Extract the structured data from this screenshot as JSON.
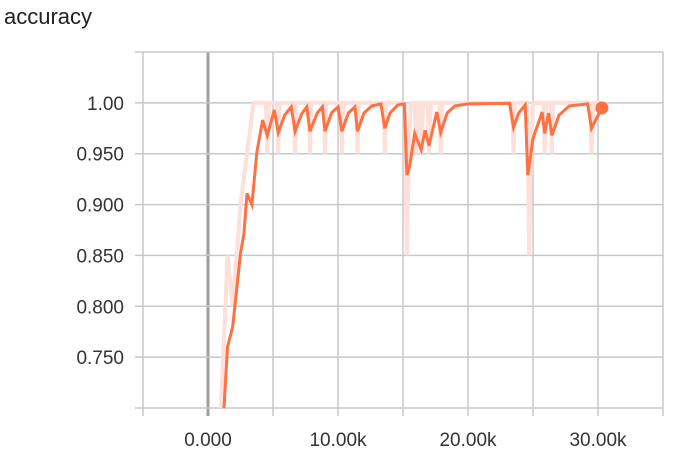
{
  "chart_data": {
    "type": "line",
    "title": "accuracy",
    "xlim": [
      -5000,
      35000
    ],
    "ylim": [
      0.7,
      1.05
    ],
    "grid": true,
    "x_ticks": [
      {
        "value": 0,
        "label": "0.000"
      },
      {
        "value": 10000,
        "label": "10.00k"
      },
      {
        "value": 20000,
        "label": "20.00k"
      },
      {
        "value": 30000,
        "label": "30.00k"
      }
    ],
    "y_ticks": [
      {
        "value": 1.0,
        "label": "1.00"
      },
      {
        "value": 0.95,
        "label": "0.950"
      },
      {
        "value": 0.9,
        "label": "0.900"
      },
      {
        "value": 0.85,
        "label": "0.850"
      },
      {
        "value": 0.8,
        "label": "0.800"
      },
      {
        "value": 0.75,
        "label": "0.750"
      }
    ],
    "x_grid_step": 5000,
    "y_grid_step": 0.05,
    "colors": {
      "smoothed": "#ff7043",
      "raw": "#fde0da",
      "grid": "#c8c8c8",
      "zero_axis": "#9e9e9e"
    },
    "series": [
      {
        "role": "raw",
        "points": [
          [
            1000,
            0.7
          ],
          [
            1500,
            0.85
          ],
          [
            1900,
            0.8
          ],
          [
            2500,
            0.9
          ],
          [
            3000,
            0.95
          ],
          [
            3500,
            1.0
          ],
          [
            4450,
            1.0
          ],
          [
            4560,
            0.95
          ],
          [
            4700,
            1.0
          ],
          [
            5300,
            1.0
          ],
          [
            5400,
            0.95
          ],
          [
            5500,
            1.0
          ],
          [
            6600,
            1.0
          ],
          [
            6700,
            0.95
          ],
          [
            6800,
            1.0
          ],
          [
            7750,
            1.0
          ],
          [
            7850,
            0.95
          ],
          [
            7950,
            1.0
          ],
          [
            8900,
            1.0
          ],
          [
            9000,
            0.95
          ],
          [
            9100,
            1.0
          ],
          [
            10200,
            1.0
          ],
          [
            10300,
            0.95
          ],
          [
            10400,
            1.0
          ],
          [
            11400,
            1.0
          ],
          [
            11500,
            0.95
          ],
          [
            11600,
            1.0
          ],
          [
            13500,
            1.0
          ],
          [
            13600,
            0.95
          ],
          [
            13700,
            1.0
          ],
          [
            15150,
            1.0
          ],
          [
            15300,
            0.85
          ],
          [
            15450,
            0.95
          ],
          [
            15600,
            1.0
          ],
          [
            15900,
            1.0
          ],
          [
            16000,
            0.95
          ],
          [
            16150,
            1.0
          ],
          [
            16300,
            1.0
          ],
          [
            16400,
            0.95
          ],
          [
            16550,
            1.0
          ],
          [
            16900,
            1.0
          ],
          [
            17000,
            0.95
          ],
          [
            17150,
            1.0
          ],
          [
            17800,
            1.0
          ],
          [
            17900,
            0.95
          ],
          [
            18000,
            1.0
          ],
          [
            23400,
            1.0
          ],
          [
            23500,
            0.95
          ],
          [
            23600,
            1.0
          ],
          [
            24550,
            1.0
          ],
          [
            24700,
            0.85
          ],
          [
            24850,
            0.95
          ],
          [
            25000,
            1.0
          ],
          [
            25800,
            1.0
          ],
          [
            25900,
            0.95
          ],
          [
            26000,
            1.0
          ],
          [
            26350,
            1.0
          ],
          [
            26450,
            0.95
          ],
          [
            26550,
            1.0
          ],
          [
            29400,
            1.0
          ],
          [
            29500,
            0.95
          ],
          [
            29650,
            1.0
          ],
          [
            30300,
            1.0
          ]
        ]
      },
      {
        "role": "smoothed",
        "points": [
          [
            1230,
            0.7
          ],
          [
            1500,
            0.76
          ],
          [
            1900,
            0.78
          ],
          [
            2500,
            0.852
          ],
          [
            2770,
            0.872
          ],
          [
            3000,
            0.911
          ],
          [
            3380,
            0.9
          ],
          [
            3750,
            0.951
          ],
          [
            4200,
            0.983
          ],
          [
            4560,
            0.968
          ],
          [
            5100,
            0.993
          ],
          [
            5400,
            0.971
          ],
          [
            5900,
            0.988
          ],
          [
            6400,
            0.996
          ],
          [
            6700,
            0.972
          ],
          [
            7200,
            0.989
          ],
          [
            7600,
            0.996
          ],
          [
            7850,
            0.972
          ],
          [
            8400,
            0.99
          ],
          [
            8800,
            0.996
          ],
          [
            9000,
            0.972
          ],
          [
            9500,
            0.99
          ],
          [
            10000,
            0.996
          ],
          [
            10300,
            0.972
          ],
          [
            10800,
            0.99
          ],
          [
            11300,
            0.996
          ],
          [
            11500,
            0.972
          ],
          [
            12000,
            0.99
          ],
          [
            12600,
            0.997
          ],
          [
            13300,
            0.999
          ],
          [
            13600,
            0.975
          ],
          [
            14000,
            0.99
          ],
          [
            14600,
            0.998
          ],
          [
            15100,
            0.999
          ],
          [
            15300,
            0.929
          ],
          [
            15500,
            0.937
          ],
          [
            15900,
            0.97
          ],
          [
            16400,
            0.954
          ],
          [
            16700,
            0.973
          ],
          [
            17000,
            0.958
          ],
          [
            17600,
            0.991
          ],
          [
            17900,
            0.971
          ],
          [
            18400,
            0.99
          ],
          [
            19000,
            0.997
          ],
          [
            20000,
            0.999
          ],
          [
            23200,
            0.9995
          ],
          [
            23500,
            0.976
          ],
          [
            23900,
            0.99
          ],
          [
            24400,
            0.998
          ],
          [
            24600,
            0.929
          ],
          [
            25000,
            0.965
          ],
          [
            25700,
            0.991
          ],
          [
            25900,
            0.97
          ],
          [
            26200,
            0.99
          ],
          [
            26450,
            0.968
          ],
          [
            27000,
            0.988
          ],
          [
            27800,
            0.997
          ],
          [
            29200,
            0.999
          ],
          [
            29500,
            0.975
          ],
          [
            30300,
            0.995
          ]
        ]
      }
    ]
  }
}
